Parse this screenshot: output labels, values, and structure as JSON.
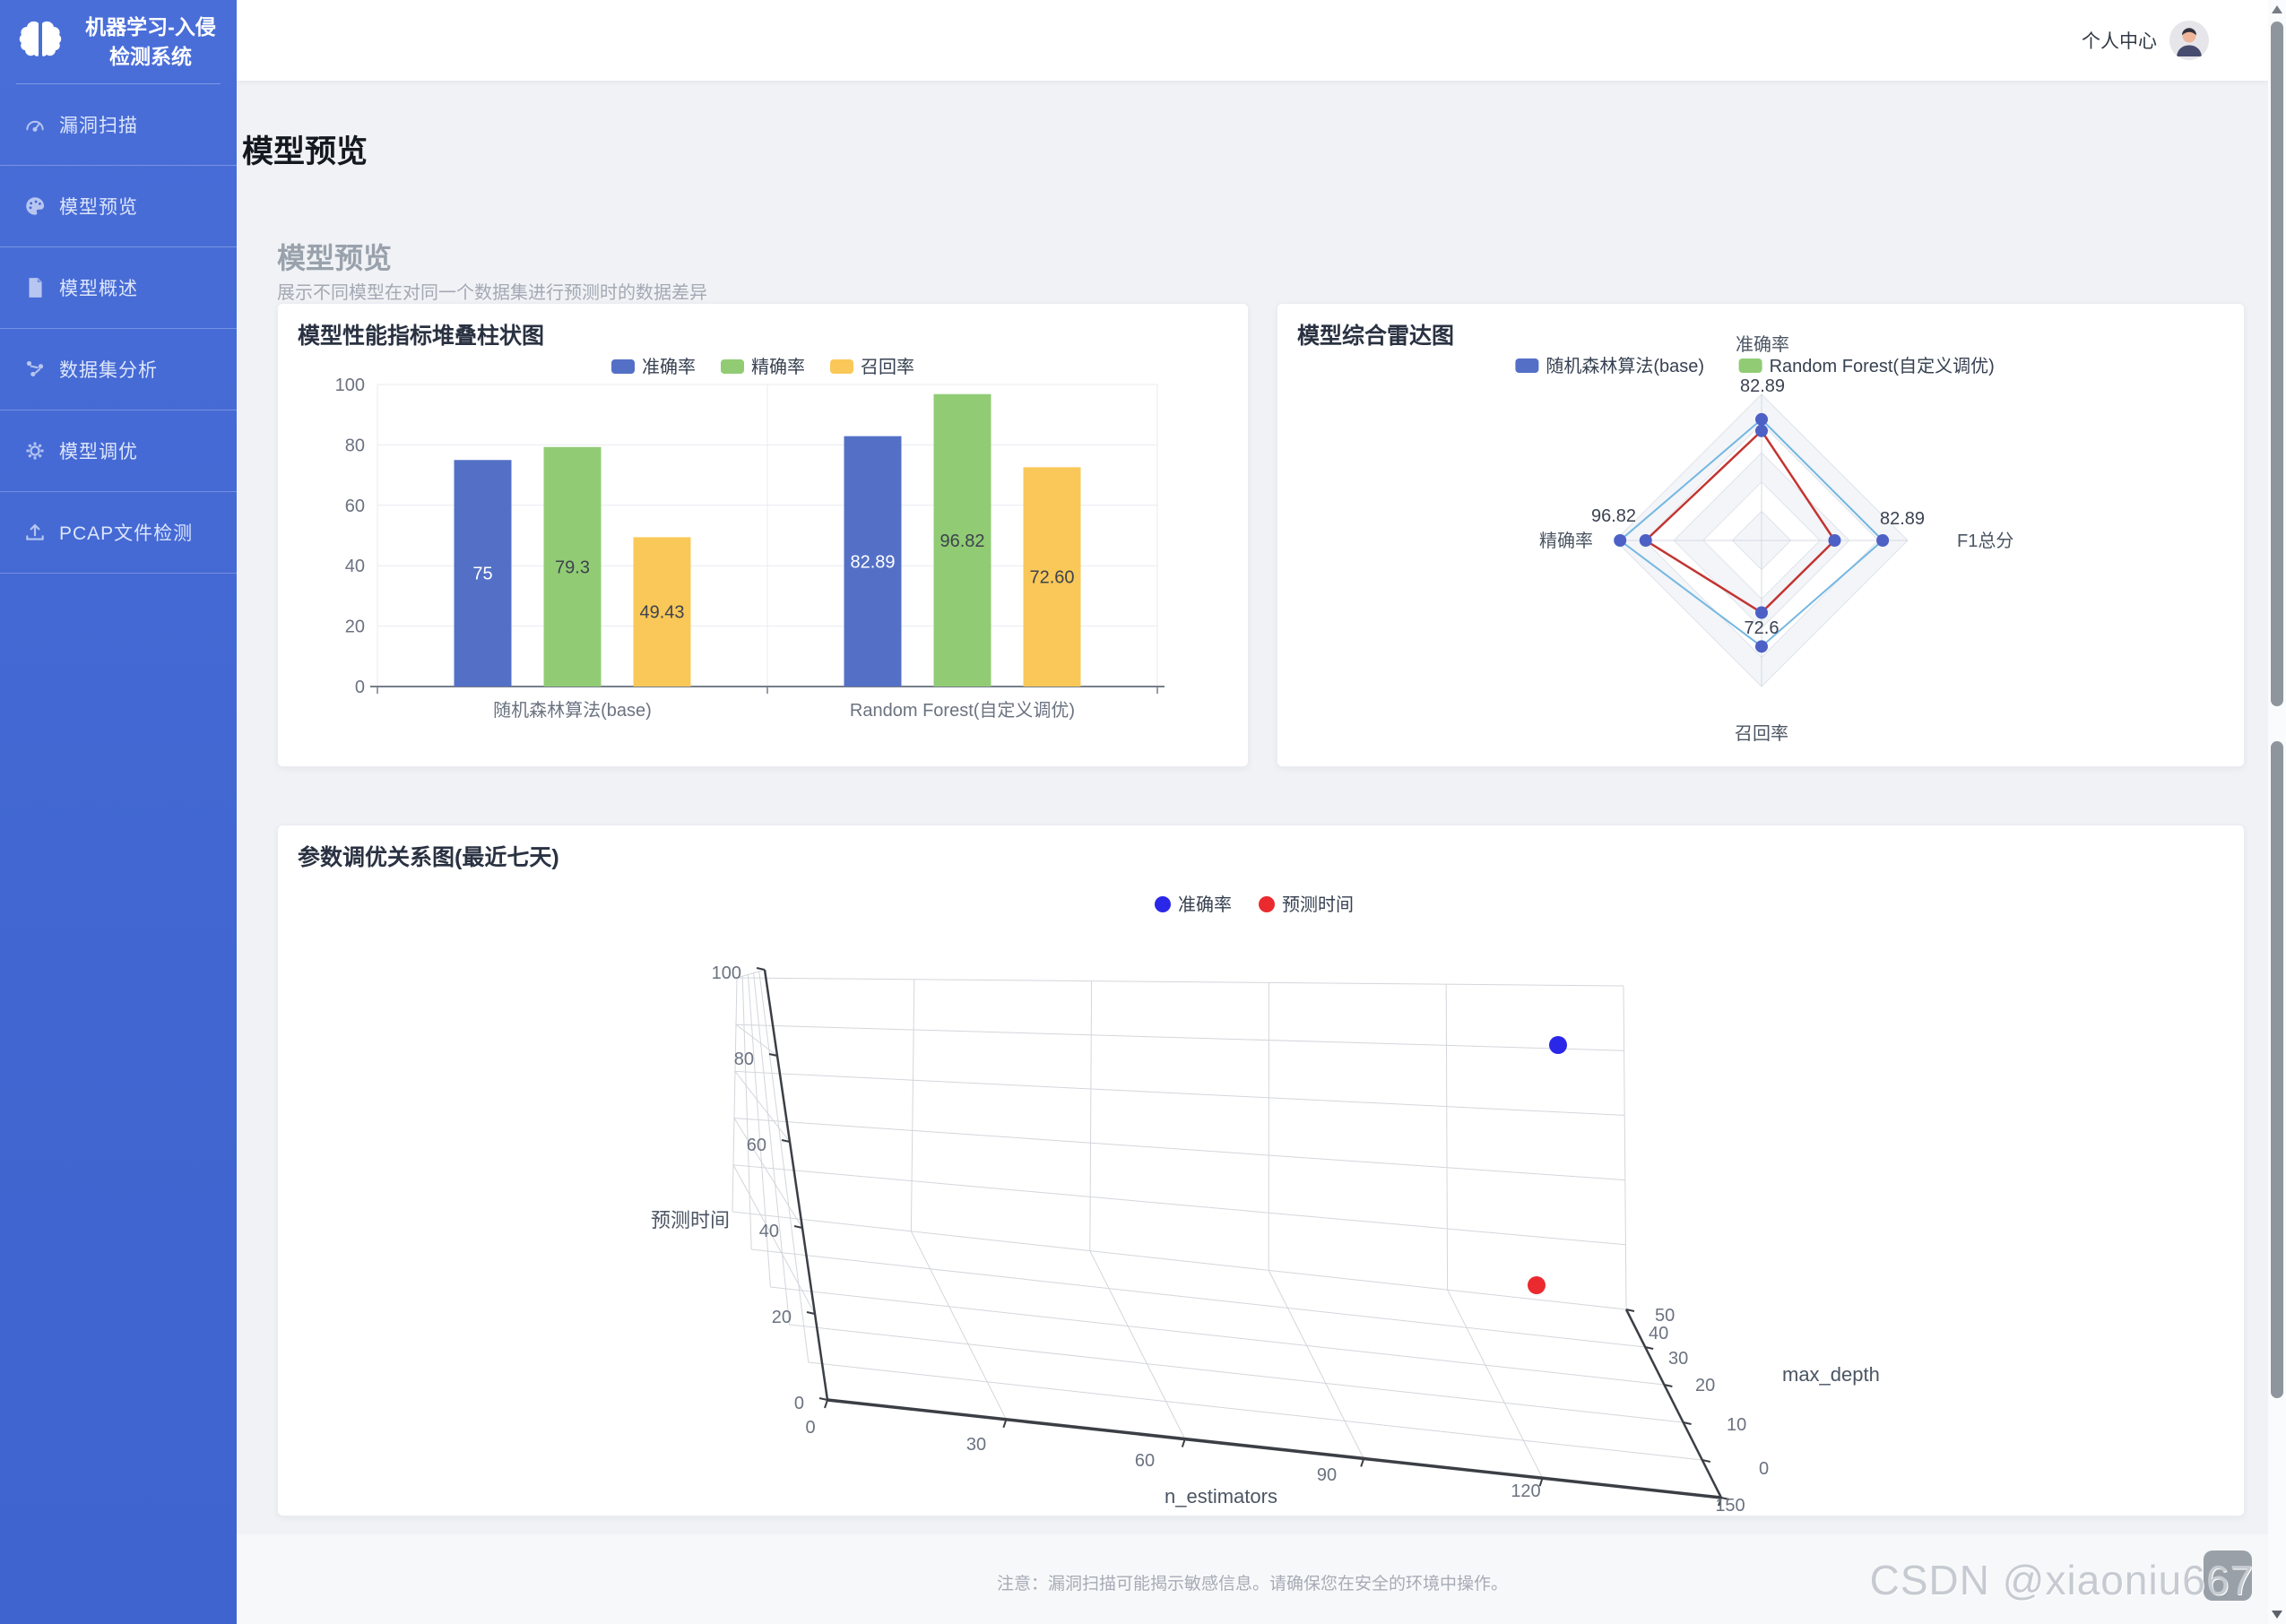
{
  "app": {
    "title_line1": "机器学习-入侵",
    "title_line2": "检测系统"
  },
  "sidebar": {
    "items": [
      {
        "label": "漏洞扫描",
        "icon": "gauge-icon"
      },
      {
        "label": "模型预览",
        "icon": "palette-icon"
      },
      {
        "label": "模型概述",
        "icon": "document-icon"
      },
      {
        "label": "数据集分析",
        "icon": "dataset-icon"
      },
      {
        "label": "模型调优",
        "icon": "gear-icon"
      },
      {
        "label": "PCAP文件检测",
        "icon": "upload-icon"
      }
    ]
  },
  "header": {
    "profile_label": "个人中心"
  },
  "page": {
    "title": "模型预览",
    "section_title": "模型预览",
    "section_subtitle": "展示不同模型在对同一个数据集进行预测时的数据差异"
  },
  "footer": {
    "note": "注意：漏洞扫描可能揭示敏感信息。请确保您在安全的环境中操作。",
    "watermark": "CSDN @xiaoniu667"
  },
  "chart_data": [
    {
      "type": "bar",
      "title": "模型性能指标堆叠柱状图",
      "categories": [
        "随机森林算法(base)",
        "Random Forest(自定义调优)"
      ],
      "series": [
        {
          "name": "准确率",
          "color": "#5470c6",
          "values": [
            75,
            82.89
          ],
          "labels": [
            "75",
            "82.89"
          ],
          "label_color": "#ffffff"
        },
        {
          "name": "精确率",
          "color": "#91cc75",
          "values": [
            79.3,
            96.82
          ],
          "labels": [
            "79.3",
            "96.82"
          ],
          "label_color": "#3d434d"
        },
        {
          "name": "召回率",
          "color": "#fac858",
          "values": [
            49.43,
            72.6
          ],
          "labels": [
            "49.43",
            "72.60"
          ],
          "label_color": "#3d434d"
        }
      ],
      "ylim": [
        0,
        100
      ],
      "yticks": [
        0,
        20,
        40,
        60,
        80,
        100
      ],
      "grid": true,
      "legend_position": "top"
    },
    {
      "type": "radar",
      "title": "模型综合雷达图",
      "indicators": [
        {
          "name": "准确率",
          "max": 100
        },
        {
          "name": "F1总分",
          "max": 100
        },
        {
          "name": "召回率",
          "max": 100
        },
        {
          "name": "精确率",
          "max": 100
        }
      ],
      "legend": [
        {
          "name": "随机森林算法(base)",
          "color": "#5470c6"
        },
        {
          "name": "Random Forest(自定义调优)",
          "color": "#91cc75"
        }
      ],
      "series": [
        {
          "name": "Random Forest(自定义调优)",
          "line_color": "#74b7e2",
          "line_width": 2,
          "values": [
            82.89,
            82.89,
            72.6,
            96.82
          ],
          "point_labels": [
            "82.89",
            "82.89",
            "72.6",
            "96.82"
          ]
        },
        {
          "name": "随机森林算法(base)",
          "line_color": "#c23531",
          "line_width": 2.5,
          "values": [
            75,
            50,
            49.4,
            79.3
          ],
          "point_labels": []
        }
      ],
      "dot_color": "#4d60c5",
      "rings": 5
    },
    {
      "type": "scatter3d",
      "title": "参数调优关系图(最近七天)",
      "xlabel": "n_estimators",
      "x_ticks": [
        0,
        30,
        60,
        90,
        120,
        150
      ],
      "depth_label": "max_depth",
      "depth_ticks": [
        0,
        10,
        20,
        30,
        40,
        50
      ],
      "zlabel": "预测时间",
      "z_ticks": [
        0,
        20,
        40,
        60,
        80,
        100
      ],
      "legend": [
        {
          "name": "准确率",
          "color": "#2b27e8"
        },
        {
          "name": "预测时间",
          "color": "#ea2a2f"
        }
      ],
      "points": [
        {
          "series": "准确率",
          "color": "#2b27e8",
          "n_estimators": 120,
          "max_depth": 40,
          "value": 85
        },
        {
          "series": "预测时间",
          "color": "#ea2a2f",
          "n_estimators": 120,
          "max_depth": 40,
          "value": 33
        }
      ]
    }
  ]
}
